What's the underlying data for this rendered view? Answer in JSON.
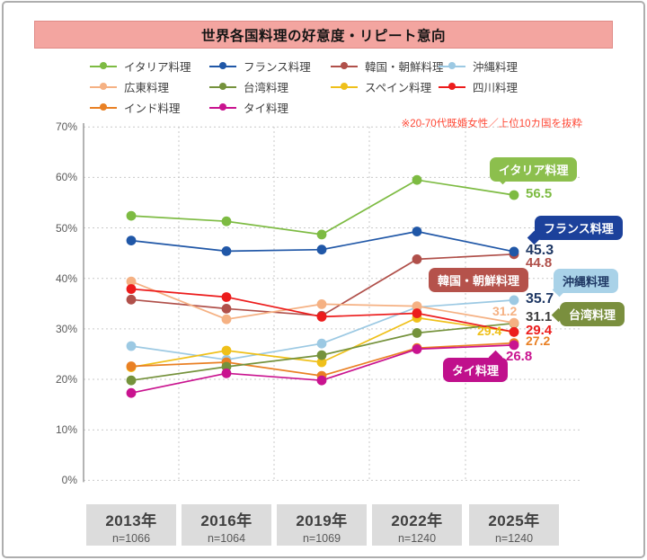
{
  "title": "世界各国料理の好意度・リピート意向",
  "note": "※20-70代既婚女性／上位10カ国を抜粋",
  "chart_data": {
    "type": "line",
    "title": "世界各国料理の好意度・リピート意向",
    "subtitle_note": "※20-70代既婚女性／上位10カ国を抜粋",
    "categories": [
      "2013年",
      "2016年",
      "2019年",
      "2022年",
      "2025年"
    ],
    "sample_sizes": [
      "n=1066",
      "n=1064",
      "n=1069",
      "n=1240",
      "n=1240"
    ],
    "ylim": [
      0,
      70
    ],
    "y_ticks": [
      "0%",
      "10%",
      "20%",
      "30%",
      "40%",
      "50%",
      "60%",
      "70%"
    ],
    "grid": "dashed horizontal lines every 10%, dashed vertical lines between year columns",
    "legend_position": "top",
    "series": [
      {
        "id": "italian",
        "name": "イタリア料理",
        "color": "#7DBB42",
        "values": [
          52.4,
          51.3,
          48.7,
          59.5,
          56.5
        ],
        "end_label": "56.5"
      },
      {
        "id": "french",
        "name": "フランス料理",
        "color": "#2057A7",
        "values": [
          47.5,
          45.4,
          45.7,
          49.3,
          45.3
        ],
        "end_label": "45.3",
        "end_label_color": "#1F3864"
      },
      {
        "id": "korean",
        "name": "韓国・朝鮮料理",
        "color": "#B0504A",
        "values": [
          35.8,
          34.0,
          32.6,
          43.8,
          44.8
        ],
        "end_label": "44.8"
      },
      {
        "id": "okinawa",
        "name": "沖縄料理",
        "color": "#9CC9E3",
        "values": [
          26.6,
          23.9,
          27.1,
          34.3,
          35.7
        ],
        "end_label": "35.7",
        "end_label_color": "#1F3864"
      },
      {
        "id": "cantonese",
        "name": "広東料理",
        "color": "#F5B183",
        "values": [
          39.4,
          31.9,
          34.9,
          34.5,
          31.2
        ],
        "end_label": "31.2"
      },
      {
        "id": "taiwan",
        "name": "台湾料理",
        "color": "#75923C",
        "values": [
          19.8,
          22.5,
          24.8,
          29.2,
          31.1
        ],
        "end_label": "31.1",
        "end_label_color": "#3F3F3F"
      },
      {
        "id": "spain",
        "name": "スペイン料理",
        "color": "#EFC01A",
        "values": [
          22.4,
          25.7,
          23.4,
          32.2,
          29.4
        ],
        "end_label": "29.4"
      },
      {
        "id": "sichuan",
        "name": "四川料理",
        "color": "#EC1C1C",
        "values": [
          37.9,
          36.3,
          32.4,
          33.1,
          29.4
        ],
        "end_label": "29.4"
      },
      {
        "id": "india",
        "name": "インド料理",
        "color": "#E98024",
        "values": [
          22.6,
          23.4,
          20.7,
          26.2,
          27.2
        ],
        "end_label": "27.2"
      },
      {
        "id": "thai",
        "name": "タイ料理",
        "color": "#C9138F",
        "values": [
          17.3,
          21.2,
          19.8,
          26.0,
          26.8
        ],
        "end_label": "26.8"
      }
    ],
    "callouts": [
      {
        "id": "italian",
        "label": "イタリア料理",
        "bg": "#8CBF4D",
        "fg": "#FFFFFF"
      },
      {
        "id": "french",
        "label": "フランス料理",
        "bg": "#1C419B",
        "fg": "#FFFFFF"
      },
      {
        "id": "korean",
        "label": "韓国・朝鮮料理",
        "bg": "#B5524B",
        "fg": "#FFFFFF"
      },
      {
        "id": "okinawa",
        "label": "沖縄料理",
        "bg": "#A9D2E8",
        "fg": "#1F3864"
      },
      {
        "id": "taiwan",
        "label": "台湾料理",
        "bg": "#7A8F3E",
        "fg": "#FFFFFF"
      },
      {
        "id": "thai",
        "label": "タイ料理",
        "bg": "#C0108C",
        "fg": "#FFFFFF"
      }
    ]
  },
  "colors": {
    "banner_bg": "#F3A5A0",
    "note_text": "#FF4633",
    "axis_text": "#595959",
    "year_box_bg": "#DCDCDC",
    "grid_line": "#C9C9C9",
    "axis_line": "#9B9B9B",
    "card_border": "#AEAEAE"
  }
}
